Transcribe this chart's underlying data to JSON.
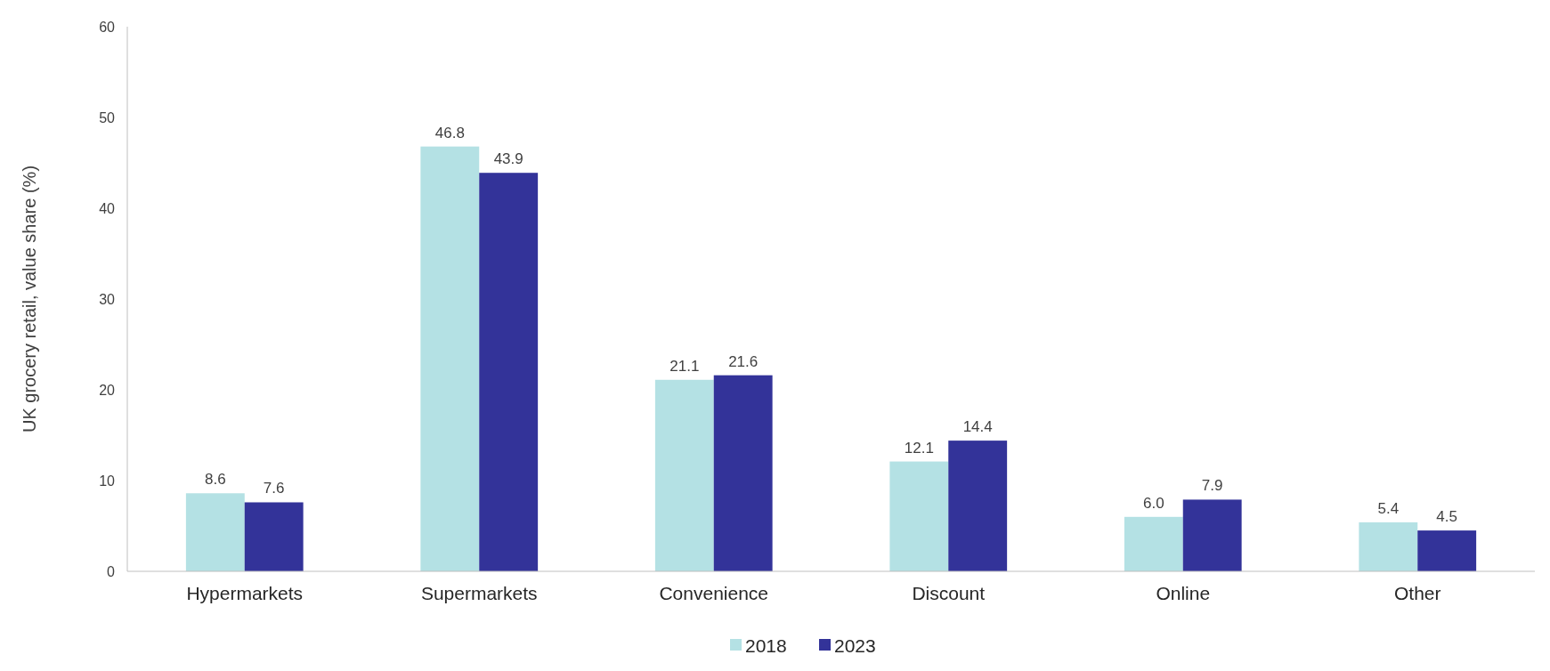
{
  "chart_data": {
    "type": "bar",
    "ylabel": "UK grocery retail, value share (%)",
    "categories": [
      "Hypermarkets",
      "Supermarkets",
      "Convenience",
      "Discount",
      "Online",
      "Other"
    ],
    "series": [
      {
        "name": "2018",
        "color": "#b4e1e4",
        "values": [
          8.6,
          46.8,
          21.1,
          12.1,
          6.0,
          5.4
        ],
        "value_labels": [
          "8.6",
          "46.8",
          "21.1",
          "12.1",
          "6.0",
          "5.4"
        ]
      },
      {
        "name": "2023",
        "color": "#333399",
        "values": [
          7.6,
          43.9,
          21.6,
          14.4,
          7.9,
          4.5
        ],
        "value_labels": [
          "7.6",
          "43.9",
          "21.6",
          "14.4",
          "7.9",
          "4.5"
        ]
      }
    ],
    "ylim": [
      0,
      60
    ],
    "yticks": [
      0,
      10,
      20,
      30,
      40,
      50,
      60
    ],
    "legend": "bottom"
  }
}
